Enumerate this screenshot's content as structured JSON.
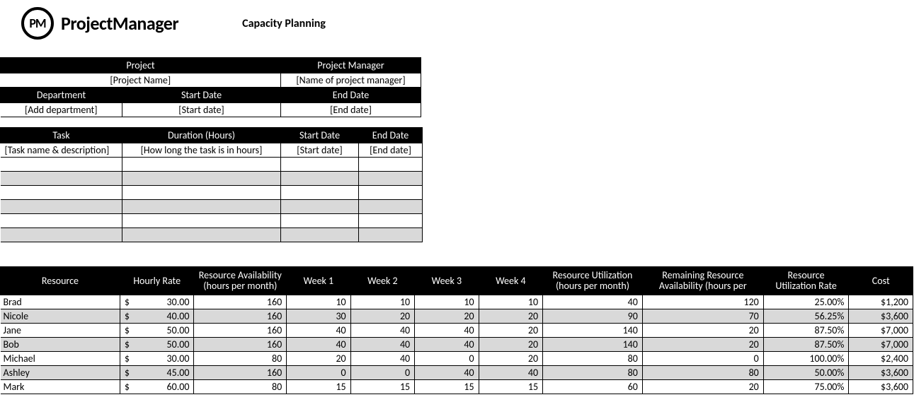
{
  "brand": {
    "logo_initials": "PM",
    "name": "ProjectManager"
  },
  "page_title": "Capacity Planning",
  "info": {
    "headers": {
      "project": "Project",
      "pm": "Project Manager",
      "dept": "Department",
      "start": "Start Date",
      "end": "End Date"
    },
    "values": {
      "project": "[Project Name]",
      "pm": "[Name of project manager]",
      "dept": "[Add department]",
      "start": "[Start date]",
      "end": "[End date]"
    }
  },
  "tasks": {
    "headers": {
      "task": "Task",
      "duration": "Duration (Hours)",
      "start": "Start Date",
      "end": "End Date"
    },
    "placeholder": {
      "task": "[Task name & description]",
      "duration": "[How long the task is in hours]",
      "start": "[Start date]",
      "end": "[End date]"
    },
    "blank_rows": 6
  },
  "resources": {
    "headers": {
      "resource": "Resource",
      "rate": "Hourly Rate",
      "avail": "Resource Availability (hours per month)",
      "w1": "Week 1",
      "w2": "Week 2",
      "w3": "Week 3",
      "w4": "Week 4",
      "util": "Resource Utilization (hours per month)",
      "remain": "Remaining Resource Availability (hours per",
      "urate": "Resource Utilization Rate",
      "cost": "Cost"
    },
    "currency": "$",
    "rows": [
      {
        "name": "Brad",
        "rate": "30.00",
        "avail": "160",
        "w1": "10",
        "w2": "10",
        "w3": "10",
        "w4": "10",
        "util": "40",
        "remain": "120",
        "urate": "25.00%",
        "cost": "$1,200"
      },
      {
        "name": "Nicole",
        "rate": "40.00",
        "avail": "160",
        "w1": "30",
        "w2": "20",
        "w3": "20",
        "w4": "20",
        "util": "90",
        "remain": "70",
        "urate": "56.25%",
        "cost": "$3,600"
      },
      {
        "name": "Jane",
        "rate": "50.00",
        "avail": "160",
        "w1": "40",
        "w2": "40",
        "w3": "40",
        "w4": "20",
        "util": "140",
        "remain": "20",
        "urate": "87.50%",
        "cost": "$7,000"
      },
      {
        "name": "Bob",
        "rate": "50.00",
        "avail": "160",
        "w1": "40",
        "w2": "40",
        "w3": "40",
        "w4": "20",
        "util": "140",
        "remain": "20",
        "urate": "87.50%",
        "cost": "$7,000"
      },
      {
        "name": "Michael",
        "rate": "30.00",
        "avail": "80",
        "w1": "20",
        "w2": "40",
        "w3": "0",
        "w4": "20",
        "util": "80",
        "remain": "0",
        "urate": "100.00%",
        "cost": "$2,400"
      },
      {
        "name": "Ashley",
        "rate": "45.00",
        "avail": "160",
        "w1": "0",
        "w2": "0",
        "w3": "40",
        "w4": "40",
        "util": "80",
        "remain": "80",
        "urate": "50.00%",
        "cost": "$3,600"
      },
      {
        "name": "Mark",
        "rate": "60.00",
        "avail": "80",
        "w1": "15",
        "w2": "15",
        "w3": "15",
        "w4": "15",
        "util": "60",
        "remain": "20",
        "urate": "75.00%",
        "cost": "$3,600"
      }
    ]
  },
  "style": {
    "shade_color": "#d9d9d9",
    "header_bg": "#000000",
    "header_fg": "#ffffff",
    "border_color": "#000000"
  }
}
